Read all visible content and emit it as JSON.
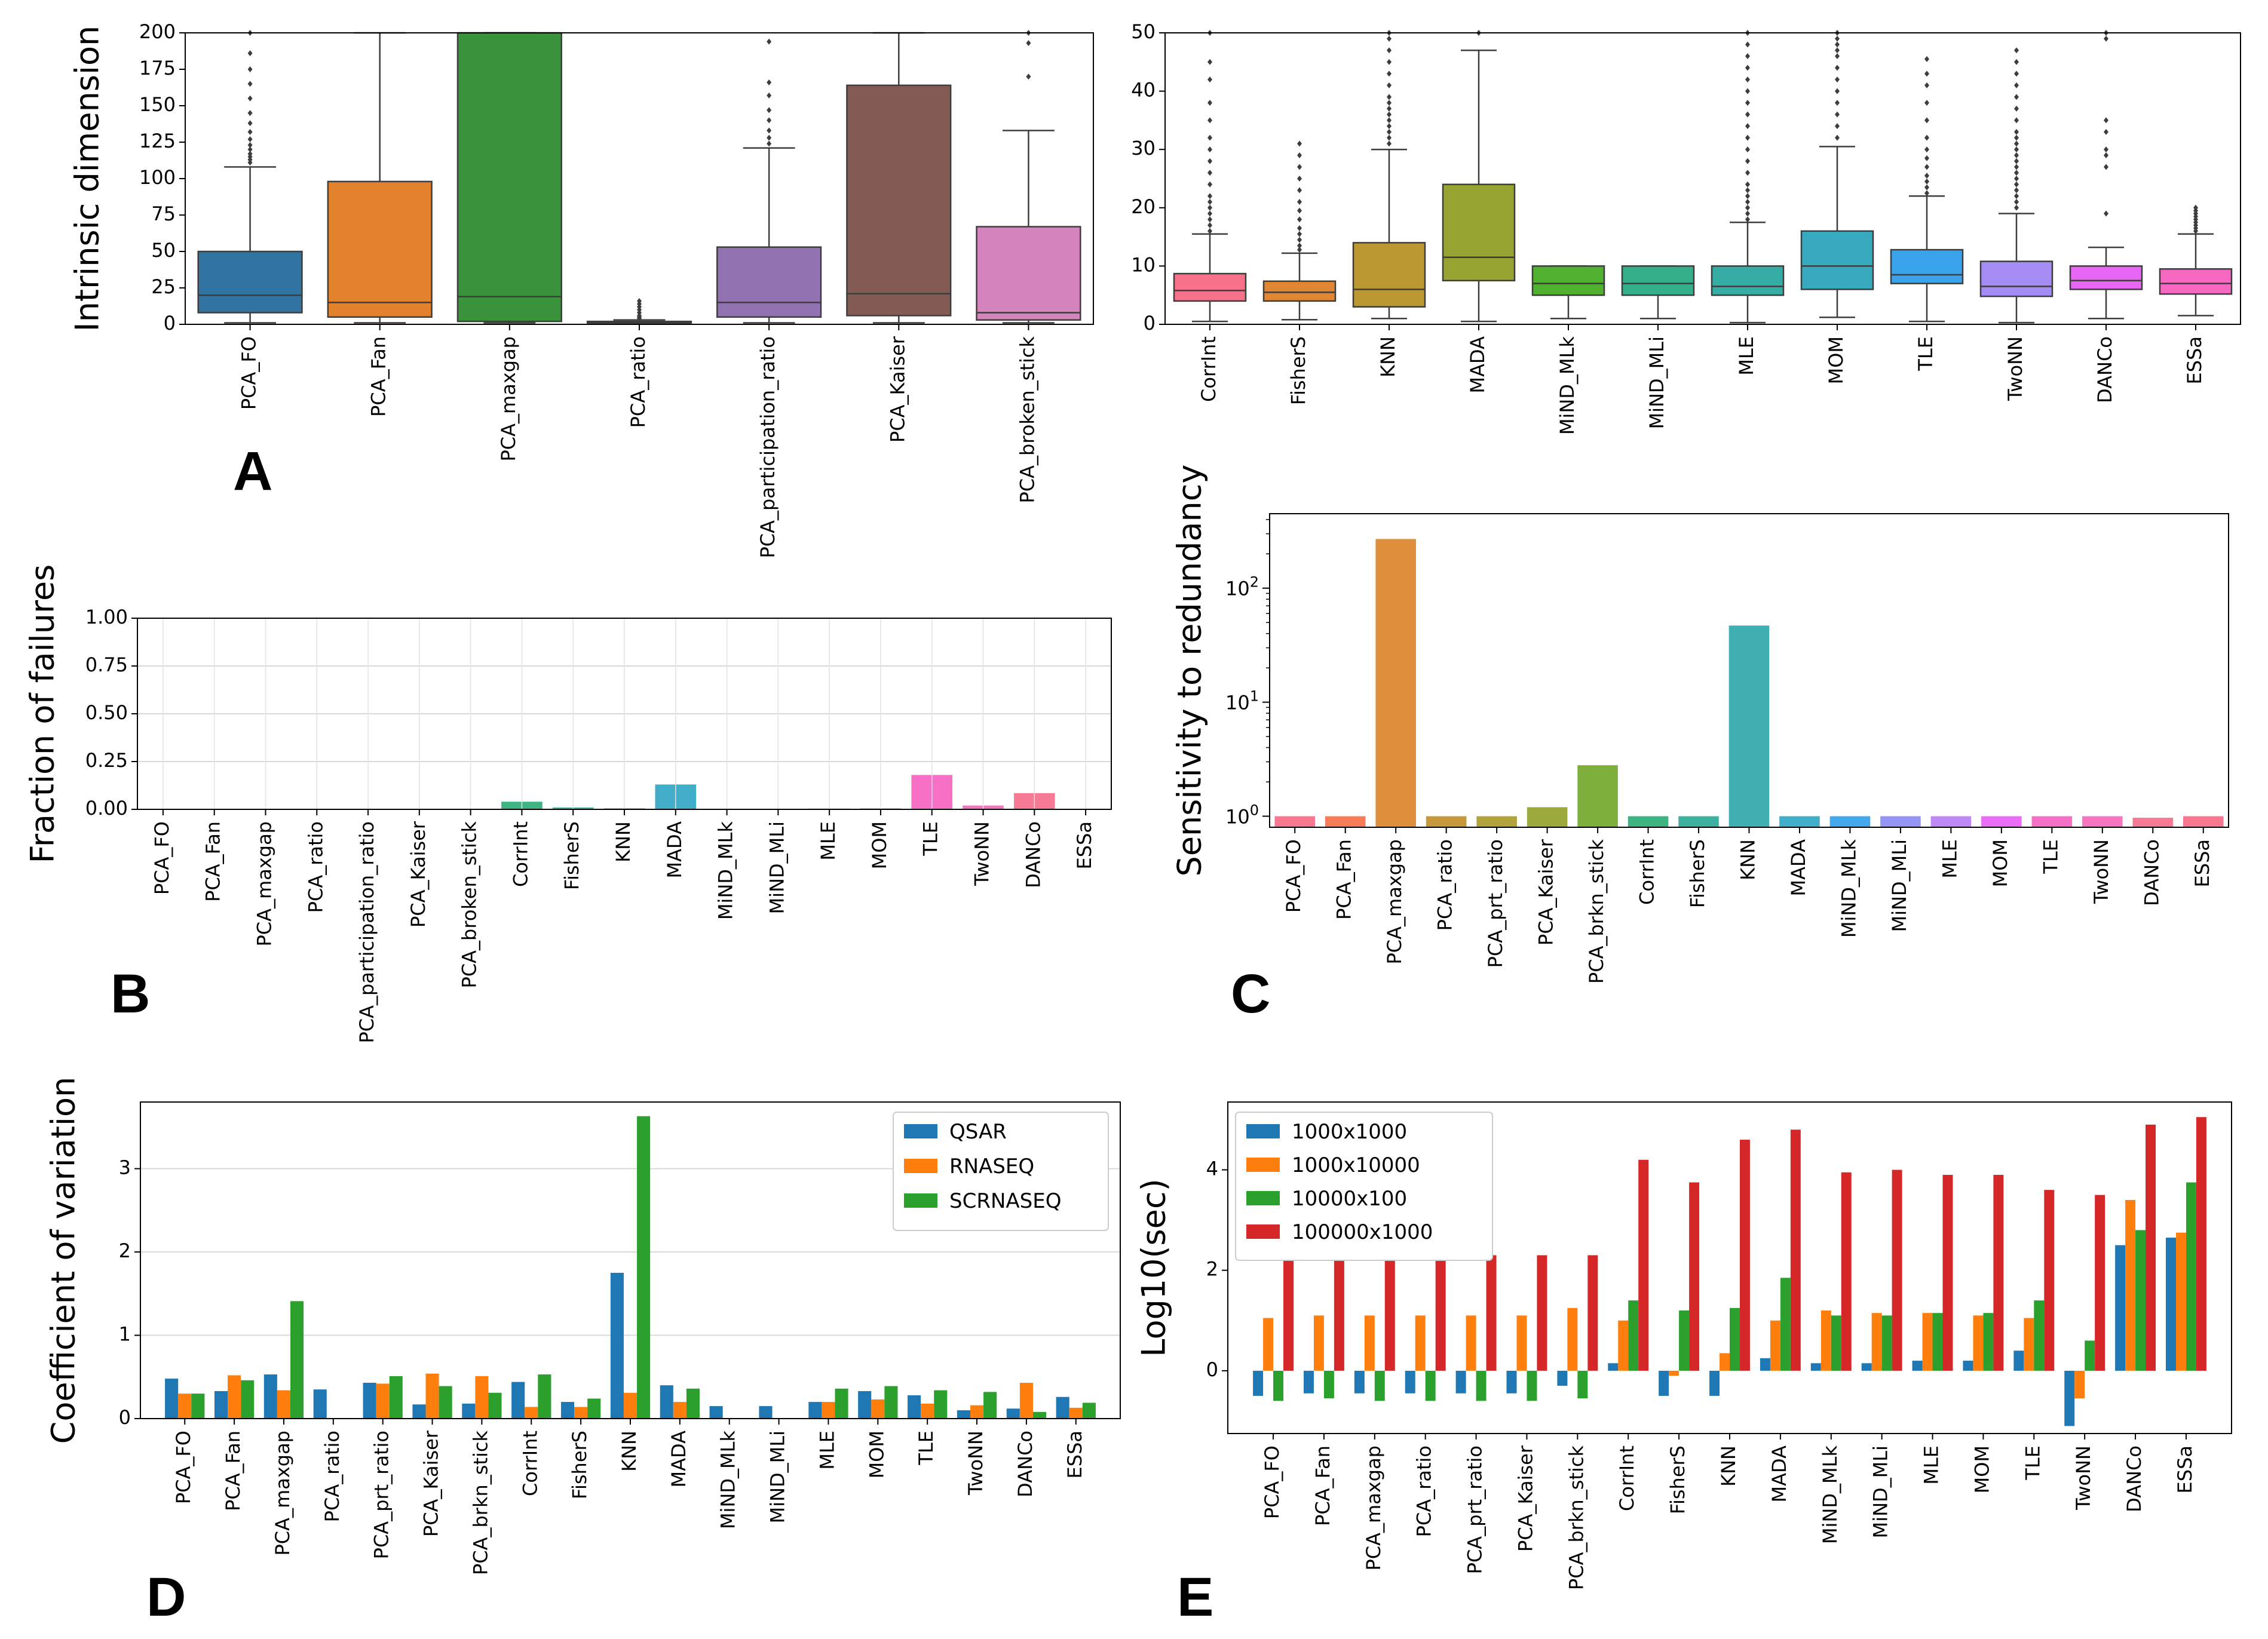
{
  "colors": {
    "tab10": [
      "#1f77b4",
      "#ff7f0e",
      "#2ca02c",
      "#d62728",
      "#9467bd",
      "#8c564b",
      "#e377c2"
    ],
    "sns_muted": [
      "#3274a1",
      "#e1812c",
      "#3a923a",
      "#c03d3e",
      "#9372b2",
      "#845b53",
      "#d684bd"
    ],
    "husl18": [
      "#f77189",
      "#f7754f",
      "#dc8932",
      "#c39532",
      "#ae9d31",
      "#97a431",
      "#77ab31",
      "#33b07a",
      "#35ad9c",
      "#36abae",
      "#38a9c5",
      "#3ba3ec",
      "#8e8ff4",
      "#bb83f4",
      "#e866f4",
      "#f668c2",
      "#f56ebc",
      "#f7748e"
    ],
    "husl12": [
      "#f77189",
      "#e18632",
      "#bb9832",
      "#97a431",
      "#50b131",
      "#34af8a",
      "#36ada4",
      "#38aabf",
      "#3ba3ec",
      "#a48cf4",
      "#e866f4",
      "#f668c2"
    ]
  },
  "chart_data": [
    {
      "id": "A1",
      "panel_label": "A",
      "type": "box",
      "ylabel": "Intrinsic dimension",
      "ylim": [
        0,
        200
      ],
      "yticks": [
        0,
        25,
        50,
        75,
        100,
        125,
        150,
        175,
        200
      ],
      "categories": [
        "PCA_FO",
        "PCA_Fan",
        "PCA_maxgap",
        "PCA_ratio",
        "PCA_participation_ratio",
        "PCA_Kaiser",
        "PCA_broken_stick"
      ],
      "palette": "sns_muted",
      "boxes": [
        {
          "q1": 8,
          "median": 20,
          "q3": 50,
          "whislo": 1,
          "whishi": 108,
          "fliers": [
            111,
            113,
            115,
            117,
            120,
            123,
            127,
            132,
            138,
            145,
            155,
            165,
            175,
            186,
            200
          ]
        },
        {
          "q1": 5,
          "median": 15,
          "q3": 98,
          "whislo": 1,
          "whishi": 200,
          "fliers": []
        },
        {
          "q1": 2,
          "median": 19,
          "q3": 200,
          "whislo": 1,
          "whishi": 200,
          "fliers": []
        },
        {
          "q1": 1,
          "median": 1,
          "q3": 2,
          "whislo": 1,
          "whishi": 3,
          "fliers": [
            4,
            5,
            6,
            8,
            10,
            12,
            14,
            16
          ]
        },
        {
          "q1": 5,
          "median": 15,
          "q3": 53,
          "whislo": 1,
          "whishi": 121,
          "fliers": [
            124,
            128,
            133,
            140,
            147,
            157,
            166,
            194
          ]
        },
        {
          "q1": 6,
          "median": 21,
          "q3": 164,
          "whislo": 1,
          "whishi": 200,
          "fliers": []
        },
        {
          "q1": 3,
          "median": 8,
          "q3": 67,
          "whislo": 1,
          "whishi": 133,
          "fliers": [
            170,
            193,
            200
          ]
        }
      ]
    },
    {
      "id": "A2",
      "type": "box",
      "ylabel": "",
      "ylim": [
        0,
        50
      ],
      "yticks": [
        0,
        10,
        20,
        30,
        40,
        50
      ],
      "categories": [
        "CorrInt",
        "FisherS",
        "KNN",
        "MADA",
        "MiND_MLk",
        "MiND_MLi",
        "MLE",
        "MOM",
        "TLE",
        "TwoNN",
        "DANCo",
        "ESSa"
      ],
      "palette": "husl12",
      "boxes": [
        {
          "q1": 4,
          "median": 5.8,
          "q3": 8.7,
          "whislo": 0.5,
          "whishi": 15.5,
          "fliers": [
            16,
            17,
            18,
            19,
            20,
            21,
            22,
            24,
            26,
            28,
            30,
            32,
            35,
            38,
            42,
            45,
            50
          ]
        },
        {
          "q1": 4,
          "median": 5.5,
          "q3": 7.4,
          "whislo": 0.8,
          "whishi": 12.2,
          "fliers": [
            12.8,
            13.5,
            14.5,
            15.5,
            16.5,
            18,
            19.5,
            21,
            23,
            25,
            27,
            29,
            31
          ]
        },
        {
          "q1": 3,
          "median": 6,
          "q3": 14,
          "whislo": 1,
          "whishi": 30,
          "fliers": [
            31,
            32,
            33,
            34,
            35,
            36,
            37,
            38,
            39,
            41,
            43,
            45,
            47,
            49,
            50
          ]
        },
        {
          "q1": 7.5,
          "median": 11.5,
          "q3": 24,
          "whislo": 0.5,
          "whishi": 47,
          "fliers": [
            50
          ]
        },
        {
          "q1": 5,
          "median": 7,
          "q3": 10,
          "whislo": 1,
          "whishi": 10,
          "fliers": []
        },
        {
          "q1": 5,
          "median": 7,
          "q3": 10,
          "whislo": 1,
          "whishi": 10,
          "fliers": []
        },
        {
          "q1": 5,
          "median": 6.5,
          "q3": 10,
          "whislo": 0.3,
          "whishi": 17.5,
          "fliers": [
            18,
            19,
            20,
            21,
            22,
            23,
            24,
            26,
            28,
            30,
            32,
            34,
            36,
            38,
            40,
            42,
            44,
            46,
            48,
            50
          ]
        },
        {
          "q1": 6,
          "median": 10,
          "q3": 16,
          "whislo": 1.2,
          "whishi": 30.5,
          "fliers": [
            32,
            34,
            36,
            38,
            40,
            42,
            44,
            46,
            47,
            48,
            49,
            50
          ]
        },
        {
          "q1": 7,
          "median": 8.5,
          "q3": 12.8,
          "whislo": 0.5,
          "whishi": 22,
          "fliers": [
            22.5,
            23.5,
            24.5,
            25.5,
            27,
            28.5,
            30,
            32,
            35,
            38,
            41,
            43,
            45.5
          ]
        },
        {
          "q1": 4.8,
          "median": 6.5,
          "q3": 10.8,
          "whislo": 0.3,
          "whishi": 19,
          "fliers": [
            20,
            21,
            22,
            23,
            24,
            25,
            26,
            27,
            28,
            29,
            30,
            31,
            32,
            33,
            35,
            37,
            39,
            41,
            43,
            45,
            47
          ]
        },
        {
          "q1": 6,
          "median": 7.5,
          "q3": 10,
          "whislo": 1,
          "whishi": 13.2,
          "fliers": [
            19,
            27,
            29,
            30,
            33,
            35,
            49,
            50
          ]
        },
        {
          "q1": 5.2,
          "median": 7,
          "q3": 9.5,
          "whislo": 1.5,
          "whishi": 15.5,
          "fliers": [
            16,
            16.5,
            17,
            17.5,
            18,
            18.5,
            19,
            19.5,
            20
          ]
        }
      ]
    },
    {
      "id": "B",
      "panel_label": "B",
      "type": "bar",
      "ylabel": "Fraction of failures",
      "ylim": [
        0,
        1
      ],
      "yticks": [
        "0.00",
        "0.25",
        "0.50",
        "0.75",
        "1.00"
      ],
      "grid": true,
      "palette": "husl18",
      "categories": [
        "PCA_FO",
        "PCA_Fan",
        "PCA_maxgap",
        "PCA_ratio",
        "PCA_participation_ratio",
        "PCA_Kaiser",
        "PCA_broken_stick",
        "CorrInt",
        "FisherS",
        "KNN",
        "MADA",
        "MiND_MLk",
        "MiND_MLi",
        "MLE",
        "MOM",
        "TLE",
        "TwoNN",
        "DANCo",
        "ESSa"
      ],
      "values": [
        0,
        0,
        0,
        0,
        0,
        0,
        0,
        0.04,
        0.01,
        0.005,
        0.13,
        0,
        0,
        0.004,
        0.005,
        0.18,
        0.02,
        0.085,
        0
      ]
    },
    {
      "id": "C",
      "panel_label": "C",
      "type": "bar",
      "yscale": "log",
      "ylabel": "Sensitivity to redundancy",
      "ylim": [
        0.8,
        450
      ],
      "yticks": [
        "10^0",
        "10^1",
        "10^2"
      ],
      "palette": "husl18",
      "categories": [
        "PCA_FO",
        "PCA_Fan",
        "PCA_maxgap",
        "PCA_ratio",
        "PCA_prt_ratio",
        "PCA_Kaiser",
        "PCA_brkn_stick",
        "CorrInt",
        "FisherS",
        "KNN",
        "MADA",
        "MiND_MLk",
        "MiND_MLi",
        "MLE",
        "MOM",
        "TLE",
        "TwoNN",
        "DANCo",
        "ESSa"
      ],
      "values": [
        1,
        1,
        270,
        1,
        1,
        1.2,
        2.8,
        1,
        1,
        47,
        1,
        1,
        1,
        1,
        1,
        1,
        1,
        0.97,
        1
      ]
    },
    {
      "id": "D",
      "panel_label": "D",
      "type": "bar",
      "ylabel": "Coefficient of variation",
      "ylim": [
        0,
        3.8
      ],
      "yticks": [
        "0",
        "1",
        "2",
        "3"
      ],
      "grid": true,
      "categories": [
        "PCA_FO",
        "PCA_Fan",
        "PCA_maxgap",
        "PCA_ratio",
        "PCA_prt_ratio",
        "PCA_Kaiser",
        "PCA_brkn_stick",
        "CorrInt",
        "FisherS",
        "KNN",
        "MADA",
        "MiND_MLk",
        "MiND_MLi",
        "MLE",
        "MOM",
        "TLE",
        "TwoNN",
        "DANCo",
        "ESSa"
      ],
      "series": [
        {
          "name": "QSAR",
          "color": "#1f77b4",
          "values": [
            0.48,
            0.33,
            0.53,
            0.35,
            0.43,
            0.17,
            0.18,
            0.44,
            0.2,
            1.75,
            0.4,
            0.15,
            0.15,
            0.2,
            0.33,
            0.28,
            0.1,
            0.12,
            0.26
          ]
        },
        {
          "name": "RNASEQ",
          "color": "#ff7f0e",
          "values": [
            0.3,
            0.52,
            0.34,
            0,
            0.42,
            0.54,
            0.51,
            0.14,
            0.14,
            0.31,
            0.2,
            0,
            0,
            0.2,
            0.23,
            0.18,
            0.16,
            0.43,
            0.13
          ]
        },
        {
          "name": "SCRNASEQ",
          "color": "#2ca02c",
          "values": [
            0.3,
            0.46,
            1.41,
            0,
            0.51,
            0.39,
            0.31,
            0.53,
            0.24,
            3.63,
            0.36,
            0,
            0,
            0.36,
            0.39,
            0.34,
            0.32,
            0.08,
            0.19
          ]
        }
      ],
      "legend": "top-right"
    },
    {
      "id": "E",
      "panel_label": "E",
      "type": "bar",
      "ylabel": "Log10(sec)",
      "ylim": [
        -1.25,
        5.35
      ],
      "yticks": [
        "0",
        "2",
        "4"
      ],
      "categories": [
        "PCA_FO",
        "PCA_Fan",
        "PCA_maxgap",
        "PCA_ratio",
        "PCA_prt_ratio",
        "PCA_Kaiser",
        "PCA_brkn_stick",
        "CorrInt",
        "FisherS",
        "KNN",
        "MADA",
        "MiND_MLk",
        "MiND_MLi",
        "MLE",
        "MOM",
        "TLE",
        "TwoNN",
        "DANCo",
        "ESSa"
      ],
      "series": [
        {
          "name": "1000x1000",
          "color": "#1f77b4",
          "values": [
            -0.5,
            -0.45,
            -0.45,
            -0.45,
            -0.45,
            -0.45,
            -0.3,
            0.15,
            -0.5,
            -0.5,
            0.25,
            0.15,
            0.15,
            0.2,
            0.2,
            0.4,
            -1.1,
            2.5,
            2.65
          ]
        },
        {
          "name": "1000x10000",
          "color": "#ff7f0e",
          "values": [
            1.05,
            1.1,
            1.1,
            1.1,
            1.1,
            1.1,
            1.25,
            1.0,
            -0.1,
            0.35,
            1.0,
            1.2,
            1.15,
            1.15,
            1.1,
            1.05,
            -0.55,
            3.4,
            2.75
          ]
        },
        {
          "name": "10000x100",
          "color": "#2ca02c",
          "values": [
            -0.6,
            -0.55,
            -0.6,
            -0.6,
            -0.6,
            -0.6,
            -0.55,
            1.4,
            1.2,
            1.25,
            1.85,
            1.1,
            1.1,
            1.15,
            1.15,
            1.4,
            0.6,
            2.8,
            3.75
          ]
        },
        {
          "name": "100000x1000",
          "color": "#d62728",
          "values": [
            2.3,
            2.3,
            2.3,
            2.3,
            2.3,
            2.3,
            2.3,
            4.2,
            3.75,
            4.6,
            4.8,
            3.95,
            4.0,
            3.9,
            3.9,
            3.6,
            3.5,
            4.9,
            5.05
          ]
        }
      ],
      "legend": "top-left"
    }
  ]
}
